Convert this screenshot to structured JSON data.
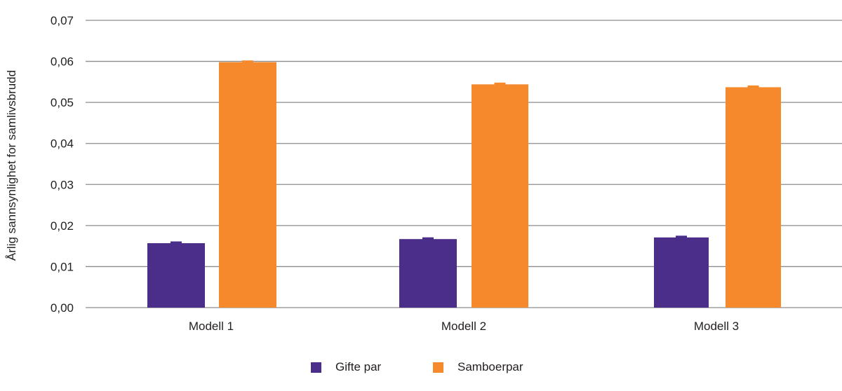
{
  "chart_data": {
    "type": "bar",
    "title": "",
    "xlabel": "",
    "ylabel": "Årlig sannsynlighet for samlivsbrudd",
    "ylim": [
      0,
      0.07
    ],
    "yticks": [
      "0,00",
      "0,01",
      "0,02",
      "0,03",
      "0,04",
      "0,05",
      "0,06",
      "0,07"
    ],
    "grid": true,
    "legend_position": "bottom",
    "categories": [
      "Modell 1",
      "Modell 2",
      "Modell 3"
    ],
    "series": [
      {
        "name": "Gifte par",
        "color": "#4b2e8a",
        "values": [
          0.0157,
          0.0167,
          0.0171
        ]
      },
      {
        "name": "Samboerpar",
        "color": "#f5892b",
        "values": [
          0.0598,
          0.0544,
          0.0537
        ]
      }
    ],
    "error_bars": true
  },
  "legend": {
    "items": [
      {
        "label": "Gifte par",
        "color": "#4b2e8a"
      },
      {
        "label": "Samboerpar",
        "color": "#f5892b"
      }
    ]
  },
  "axis": {
    "ylabel": "Årlig sannsynlighet for samlivsbrudd"
  }
}
